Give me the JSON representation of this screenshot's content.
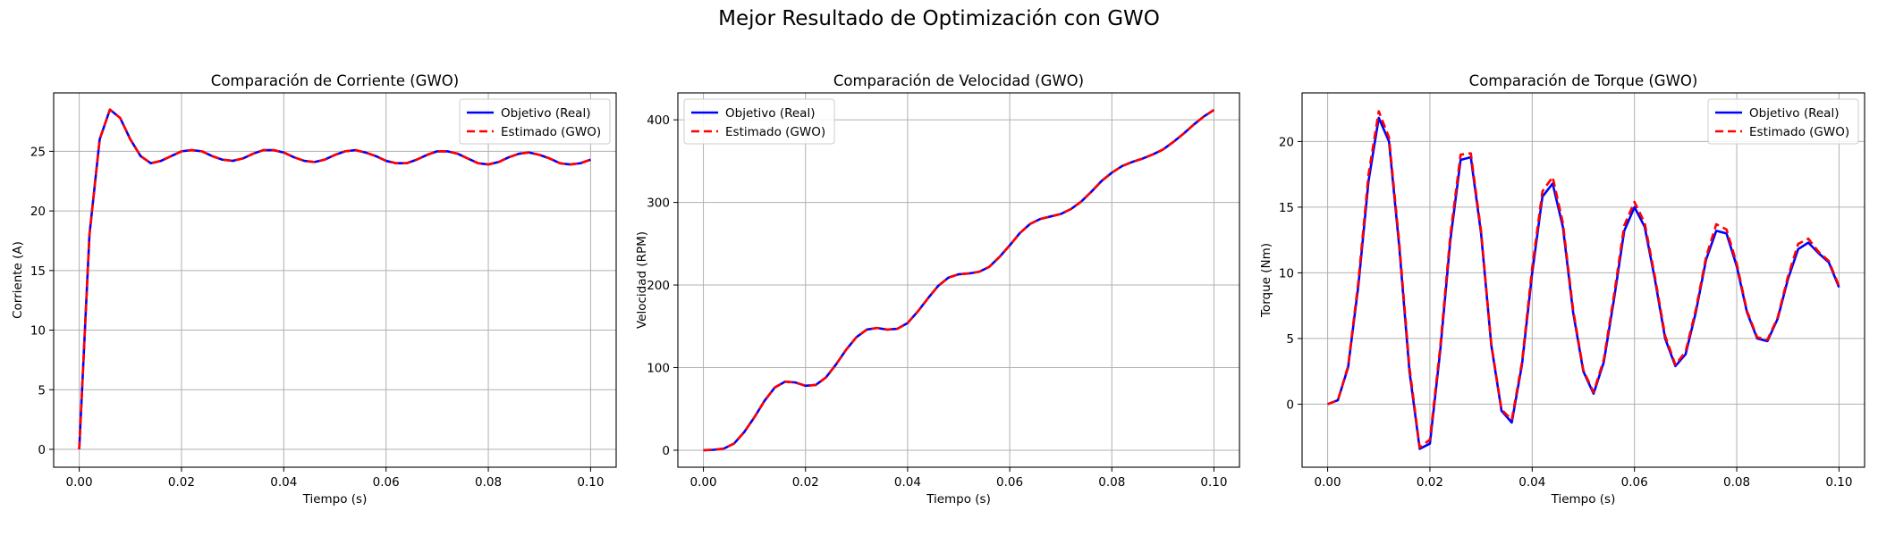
{
  "suptitle": "Mejor Resultado de Optimización con GWO",
  "colors": {
    "real": "#0000ff",
    "estimated": "#ff0000",
    "grid": "#b0b0b0"
  },
  "chart_data": [
    {
      "type": "line",
      "title": "Comparación de Corriente (GWO)",
      "xlabel": "Tiempo (s)",
      "ylabel": "Corriente (A)",
      "xlim": [
        -0.005,
        0.105
      ],
      "ylim": [
        -1.5,
        29.9
      ],
      "xticks": [
        0.0,
        0.02,
        0.04,
        0.06,
        0.08,
        0.1
      ],
      "xtick_labels": [
        "0.00",
        "0.02",
        "0.04",
        "0.06",
        "0.08",
        "0.10"
      ],
      "yticks": [
        0,
        5,
        10,
        15,
        20,
        25
      ],
      "ytick_labels": [
        "0",
        "5",
        "10",
        "15",
        "20",
        "25"
      ],
      "grid": true,
      "legend": "upper right",
      "x": [
        0.0,
        0.002,
        0.004,
        0.006,
        0.008,
        0.01,
        0.012,
        0.014,
        0.016,
        0.018,
        0.02,
        0.022,
        0.024,
        0.026,
        0.028,
        0.03,
        0.032,
        0.034,
        0.036,
        0.038,
        0.04,
        0.042,
        0.044,
        0.046,
        0.048,
        0.05,
        0.052,
        0.054,
        0.056,
        0.058,
        0.06,
        0.062,
        0.064,
        0.066,
        0.068,
        0.07,
        0.072,
        0.074,
        0.076,
        0.078,
        0.08,
        0.082,
        0.084,
        0.086,
        0.088,
        0.09,
        0.092,
        0.094,
        0.096,
        0.098,
        0.1
      ],
      "series": [
        {
          "name": "Objetivo (Real)",
          "style": "solid",
          "values": [
            0.0,
            18.0,
            26.0,
            28.5,
            27.8,
            26.0,
            24.6,
            24.0,
            24.2,
            24.6,
            25.0,
            25.1,
            25.0,
            24.6,
            24.3,
            24.2,
            24.4,
            24.8,
            25.1,
            25.1,
            24.9,
            24.5,
            24.2,
            24.1,
            24.3,
            24.7,
            25.0,
            25.1,
            24.9,
            24.6,
            24.2,
            24.0,
            24.0,
            24.3,
            24.7,
            25.0,
            25.0,
            24.8,
            24.4,
            24.0,
            23.9,
            24.1,
            24.5,
            24.8,
            24.9,
            24.7,
            24.4,
            24.0,
            23.9,
            24.0,
            24.3
          ]
        },
        {
          "name": "Estimado (GWO)",
          "style": "dashed",
          "values": [
            0.0,
            18.0,
            26.0,
            28.5,
            27.8,
            26.0,
            24.6,
            24.0,
            24.2,
            24.6,
            25.0,
            25.1,
            25.0,
            24.6,
            24.3,
            24.2,
            24.4,
            24.8,
            25.1,
            25.1,
            24.9,
            24.5,
            24.2,
            24.1,
            24.3,
            24.7,
            25.0,
            25.1,
            24.9,
            24.6,
            24.2,
            24.0,
            24.0,
            24.3,
            24.7,
            25.0,
            25.0,
            24.8,
            24.4,
            24.0,
            23.9,
            24.1,
            24.5,
            24.8,
            24.9,
            24.7,
            24.4,
            24.0,
            23.9,
            24.0,
            24.3
          ]
        }
      ]
    },
    {
      "type": "line",
      "title": "Comparación de Velocidad (GWO)",
      "xlabel": "Tiempo (s)",
      "ylabel": "Velocidad (RPM)",
      "xlim": [
        -0.005,
        0.105
      ],
      "ylim": [
        -20.6,
        432.6
      ],
      "xticks": [
        0.0,
        0.02,
        0.04,
        0.06,
        0.08,
        0.1
      ],
      "xtick_labels": [
        "0.00",
        "0.02",
        "0.04",
        "0.06",
        "0.08",
        "0.10"
      ],
      "yticks": [
        0,
        100,
        200,
        300,
        400
      ],
      "ytick_labels": [
        "0",
        "100",
        "200",
        "300",
        "400"
      ],
      "grid": true,
      "legend": "upper left",
      "x": [
        0.0,
        0.002,
        0.004,
        0.006,
        0.008,
        0.01,
        0.012,
        0.014,
        0.016,
        0.018,
        0.02,
        0.022,
        0.024,
        0.026,
        0.028,
        0.03,
        0.032,
        0.034,
        0.036,
        0.038,
        0.04,
        0.042,
        0.044,
        0.046,
        0.048,
        0.05,
        0.052,
        0.054,
        0.056,
        0.058,
        0.06,
        0.062,
        0.064,
        0.066,
        0.068,
        0.07,
        0.072,
        0.074,
        0.076,
        0.078,
        0.08,
        0.082,
        0.084,
        0.086,
        0.088,
        0.09,
        0.092,
        0.094,
        0.096,
        0.098,
        0.1
      ],
      "series": [
        {
          "name": "Objetivo (Real)",
          "style": "solid",
          "values": [
            0.0,
            0.5,
            2.0,
            8.0,
            22.0,
            40.0,
            60.0,
            76.0,
            83.0,
            82.0,
            78.0,
            79.0,
            88.0,
            104.0,
            122.0,
            137.0,
            146.0,
            148.0,
            146.0,
            147.0,
            154.0,
            168.0,
            184.0,
            199.0,
            209.0,
            213.0,
            214.0,
            216.0,
            222.0,
            234.0,
            248.0,
            263.0,
            274.0,
            280.0,
            283.0,
            286.0,
            292.0,
            301.0,
            313.0,
            326.0,
            336.0,
            344.0,
            349.0,
            353.0,
            358.0,
            364.0,
            373.0,
            383.0,
            394.0,
            404.0,
            412.0
          ]
        },
        {
          "name": "Estimado (GWO)",
          "style": "dashed",
          "values": [
            0.0,
            0.5,
            2.0,
            8.0,
            22.0,
            40.0,
            60.0,
            76.0,
            83.0,
            82.0,
            78.0,
            79.0,
            88.0,
            104.0,
            122.0,
            137.0,
            146.0,
            148.0,
            146.0,
            147.0,
            154.0,
            168.0,
            184.0,
            199.0,
            209.0,
            213.0,
            214.0,
            216.0,
            222.0,
            234.0,
            248.0,
            263.0,
            274.0,
            280.0,
            283.0,
            286.0,
            292.0,
            301.0,
            313.0,
            326.0,
            336.0,
            344.0,
            349.0,
            353.0,
            358.0,
            364.0,
            373.0,
            383.0,
            394.0,
            404.0,
            412.0
          ]
        }
      ]
    },
    {
      "type": "line",
      "title": "Comparación de Torque (GWO)",
      "xlabel": "Tiempo (s)",
      "ylabel": "Torque (Nm)",
      "xlim": [
        -0.005,
        0.105
      ],
      "ylim": [
        -4.8,
        23.7
      ],
      "xticks": [
        0.0,
        0.02,
        0.04,
        0.06,
        0.08,
        0.1
      ],
      "xtick_labels": [
        "0.00",
        "0.02",
        "0.04",
        "0.06",
        "0.08",
        "0.10"
      ],
      "yticks": [
        0,
        5,
        10,
        15,
        20
      ],
      "ytick_labels": [
        "0",
        "5",
        "10",
        "15",
        "20"
      ],
      "grid": true,
      "legend": "upper right",
      "x": [
        0.0,
        0.002,
        0.004,
        0.006,
        0.008,
        0.01,
        0.012,
        0.014,
        0.016,
        0.018,
        0.02,
        0.022,
        0.024,
        0.026,
        0.028,
        0.03,
        0.032,
        0.034,
        0.036,
        0.038,
        0.04,
        0.042,
        0.044,
        0.046,
        0.048,
        0.05,
        0.052,
        0.054,
        0.056,
        0.058,
        0.06,
        0.062,
        0.064,
        0.066,
        0.068,
        0.07,
        0.072,
        0.074,
        0.076,
        0.078,
        0.08,
        0.082,
        0.084,
        0.086,
        0.088,
        0.09,
        0.092,
        0.094,
        0.096,
        0.098,
        0.1
      ],
      "series": [
        {
          "name": "Objetivo (Real)",
          "style": "solid",
          "values": [
            0.0,
            0.3,
            2.8,
            9.0,
            17.0,
            21.8,
            20.0,
            12.0,
            2.5,
            -3.4,
            -3.0,
            4.0,
            12.5,
            18.6,
            18.8,
            13.0,
            4.5,
            -0.5,
            -1.4,
            3.0,
            10.0,
            15.8,
            16.8,
            13.5,
            7.0,
            2.5,
            0.8,
            3.2,
            8.0,
            13.2,
            15.0,
            13.5,
            9.5,
            5.0,
            2.9,
            3.8,
            7.0,
            11.0,
            13.2,
            13.0,
            10.5,
            7.0,
            5.0,
            4.8,
            6.5,
            9.5,
            11.8,
            12.3,
            11.5,
            10.8,
            8.9
          ]
        },
        {
          "name": "Estimado (GWO)",
          "style": "dashed",
          "values": [
            0.0,
            0.3,
            2.9,
            9.3,
            17.5,
            22.3,
            20.3,
            12.3,
            2.8,
            -3.3,
            -2.7,
            4.3,
            12.9,
            19.0,
            19.1,
            13.2,
            4.6,
            -0.4,
            -1.2,
            3.2,
            10.4,
            16.2,
            17.3,
            13.8,
            7.2,
            2.6,
            0.9,
            3.4,
            8.3,
            13.6,
            15.4,
            13.8,
            9.7,
            5.2,
            3.0,
            4.0,
            7.2,
            11.2,
            13.7,
            13.3,
            10.7,
            7.1,
            5.1,
            4.9,
            6.6,
            9.7,
            12.2,
            12.6,
            11.6,
            10.9,
            9.0
          ]
        }
      ]
    }
  ]
}
